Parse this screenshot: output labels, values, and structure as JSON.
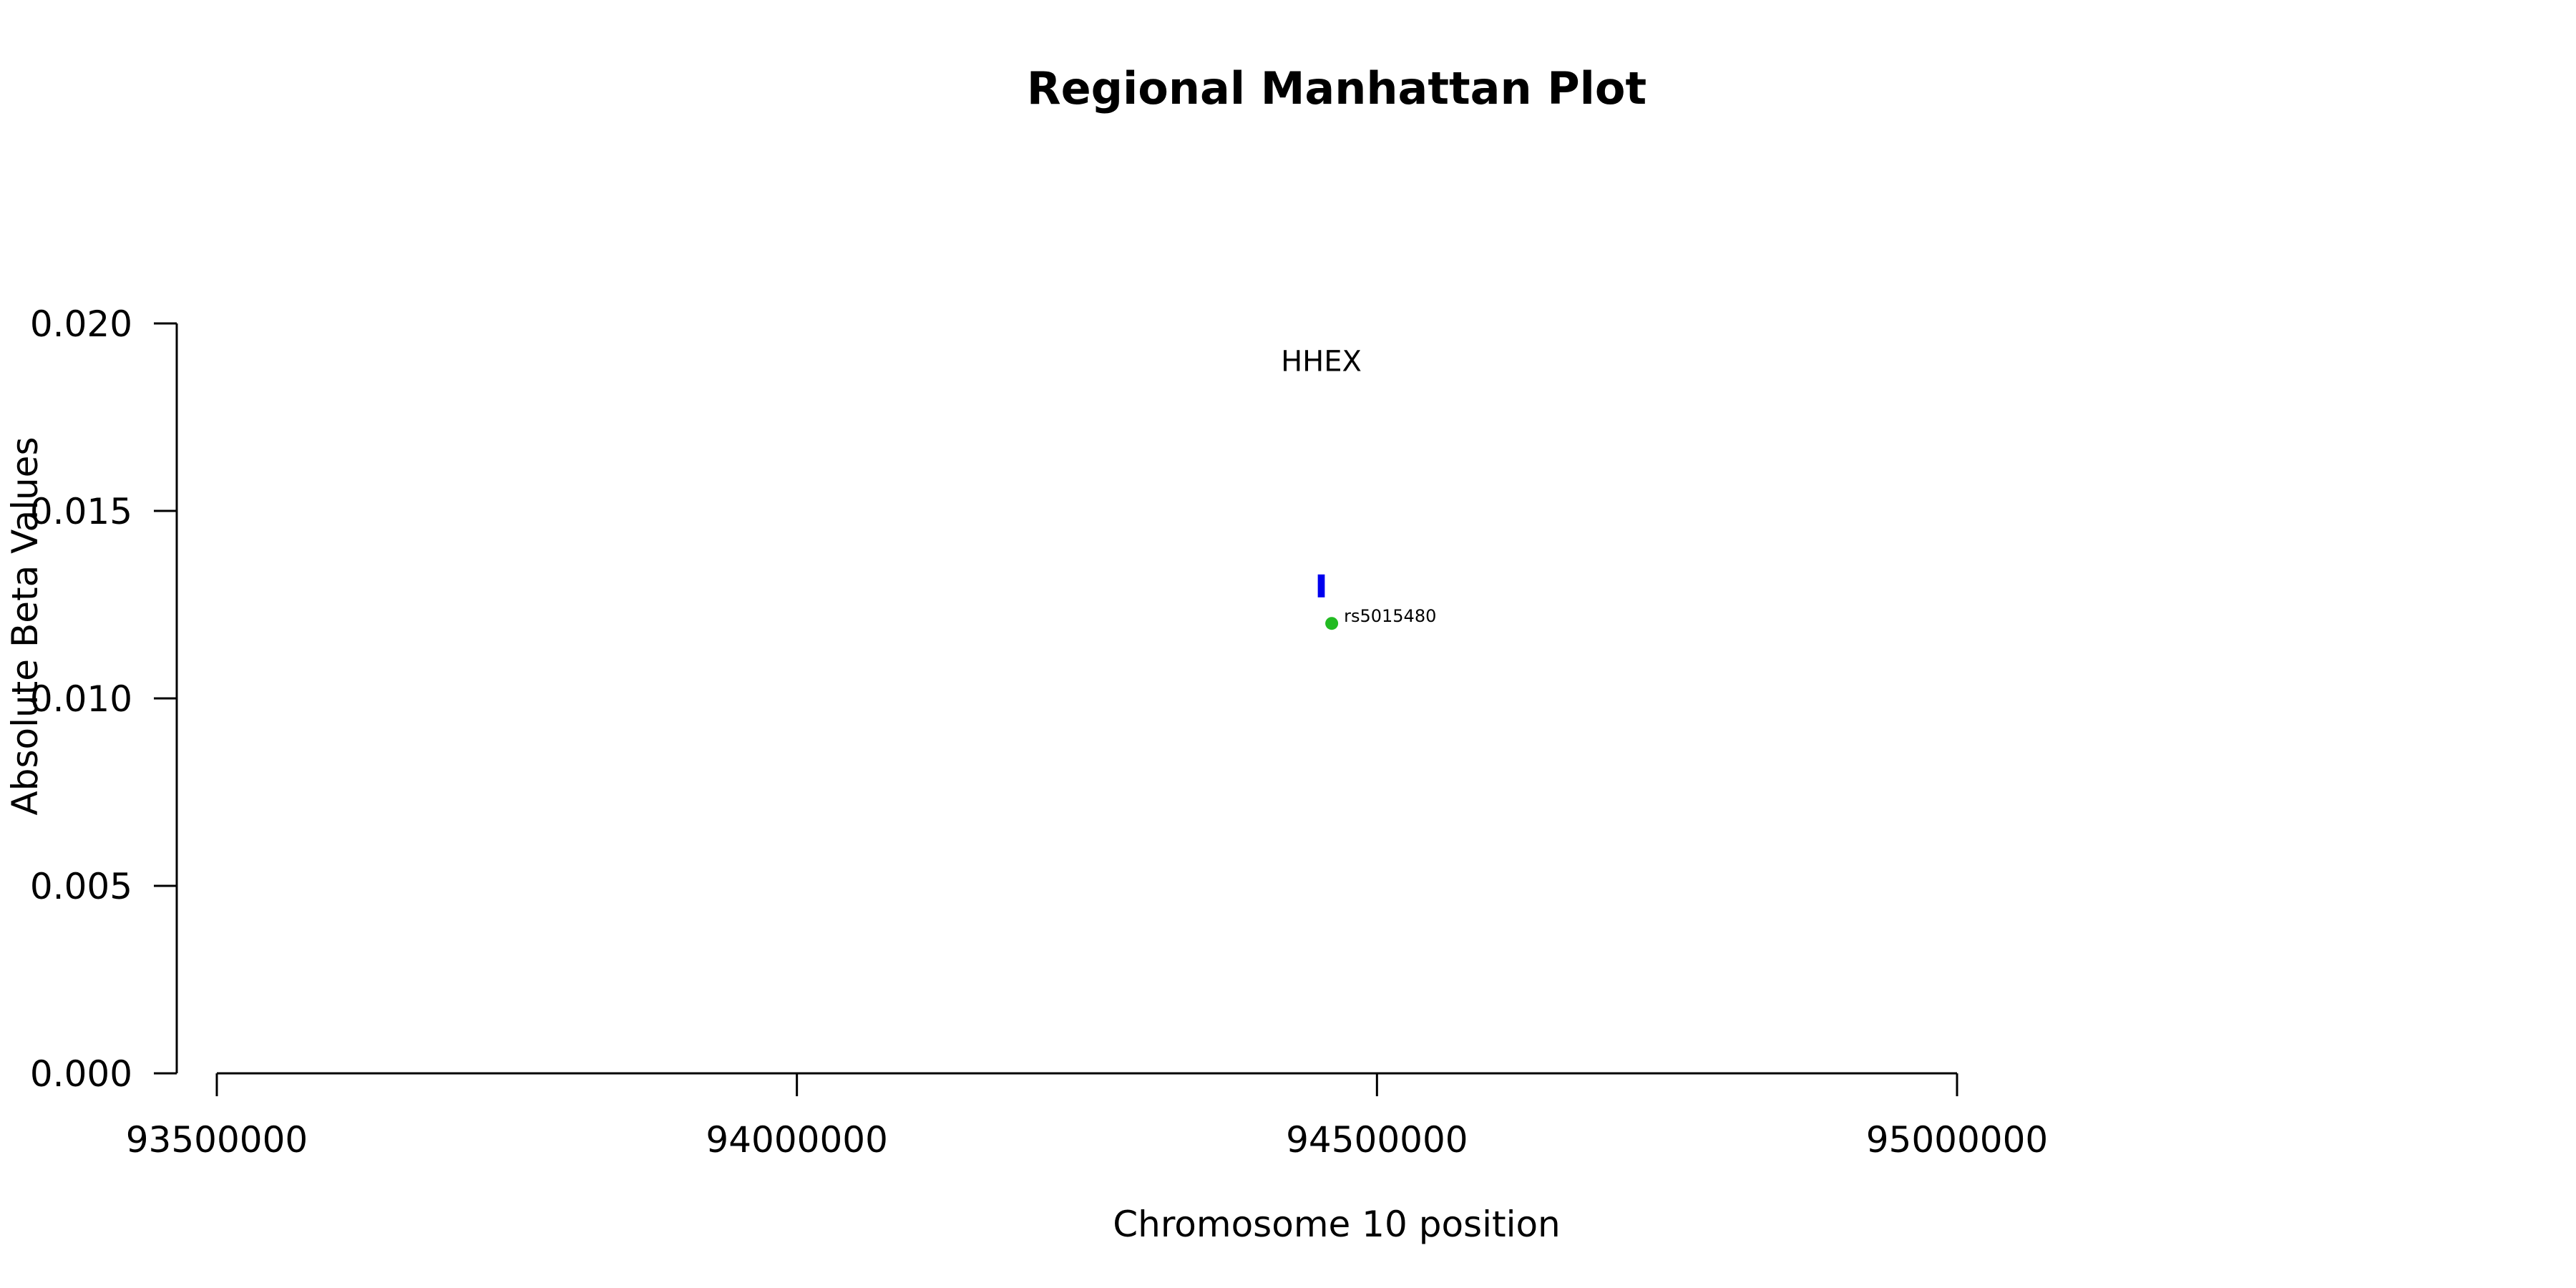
{
  "chart_data": {
    "type": "scatter",
    "title": "Regional Manhattan Plot",
    "xlabel": "Chromosome 10 position",
    "ylabel": "Absolute Beta Values",
    "xlim": [
      93500000,
      95000000
    ],
    "ylim": [
      0,
      0.02
    ],
    "x_ticks": [
      93500000,
      94000000,
      94500000,
      95000000
    ],
    "y_ticks": [
      0.0,
      0.005,
      0.01,
      0.015,
      0.02
    ],
    "x_tick_labels": [
      "93500000",
      "94000000",
      "94500000",
      "95000000"
    ],
    "y_tick_labels": [
      "0.000",
      "0.005",
      "0.010",
      "0.015",
      "0.020"
    ],
    "grid": false,
    "genes": [
      {
        "name": "HHEX",
        "start": 94449000,
        "end": 94455000,
        "y": 0.013,
        "label_y": 0.019,
        "color": "#0000ee"
      }
    ],
    "points": [
      {
        "x": 94461000,
        "y": 0.012,
        "label": "rs5015480",
        "color": "#22bb22"
      }
    ]
  }
}
